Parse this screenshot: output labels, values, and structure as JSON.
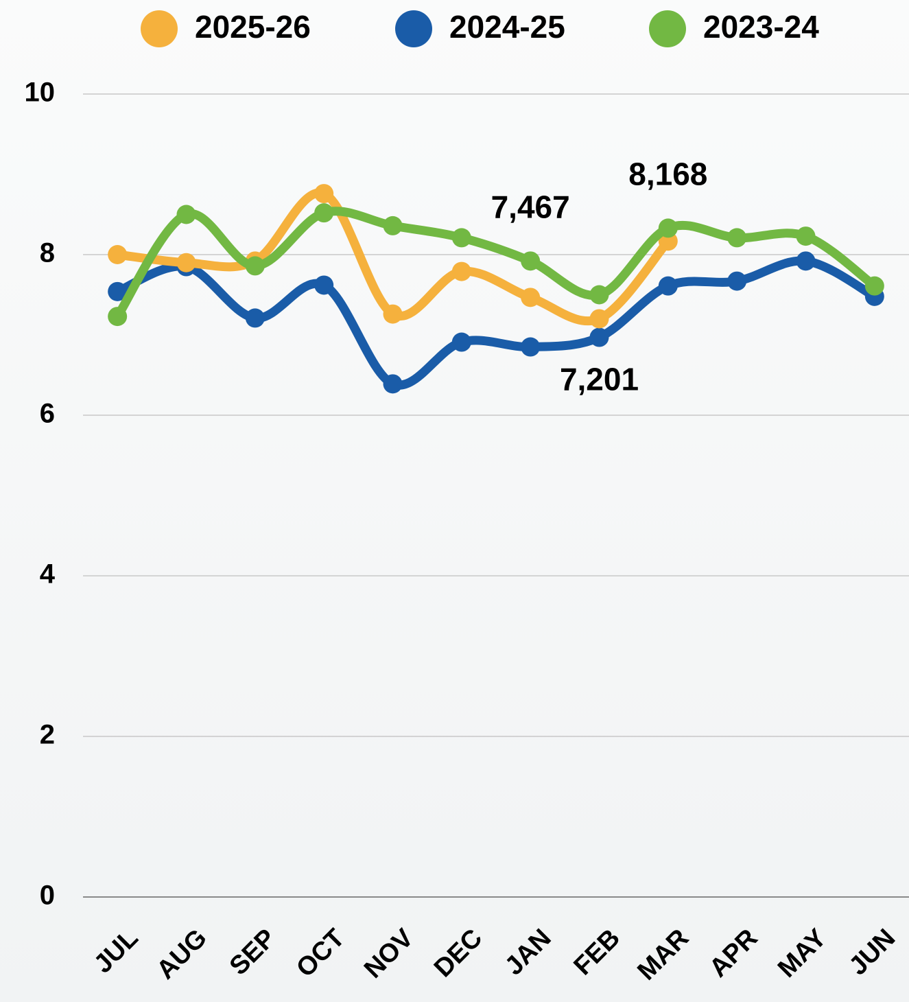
{
  "chart_data": {
    "type": "line",
    "categories": [
      "JUL",
      "AUG",
      "SEP",
      "OCT",
      "NOV",
      "DEC",
      "JAN",
      "FEB",
      "MAR",
      "APR",
      "MAY",
      "JUN"
    ],
    "series": [
      {
        "name": "2025-26",
        "color": "#f5b13d",
        "values": [
          8.0,
          7.9,
          7.92,
          8.76,
          7.26,
          7.79,
          7.467,
          7.201,
          8.168,
          null,
          null,
          null
        ],
        "value_labels": [
          null,
          null,
          null,
          null,
          null,
          null,
          "7,467",
          "7,201",
          "8,168",
          null,
          null,
          null
        ]
      },
      {
        "name": "2024-25",
        "color": "#1a5ca8",
        "values": [
          7.54,
          7.85,
          7.21,
          7.62,
          6.39,
          6.91,
          6.85,
          6.97,
          7.61,
          7.67,
          7.92,
          7.48
        ]
      },
      {
        "name": "2023-24",
        "color": "#72b843",
        "values": [
          7.23,
          8.5,
          7.86,
          8.52,
          8.36,
          8.21,
          7.92,
          7.5,
          8.33,
          8.21,
          8.23,
          7.61
        ]
      }
    ],
    "ylim": [
      0,
      10
    ],
    "yticks": [
      0,
      2,
      4,
      6,
      8,
      10
    ],
    "grid": true,
    "legend": "top"
  }
}
